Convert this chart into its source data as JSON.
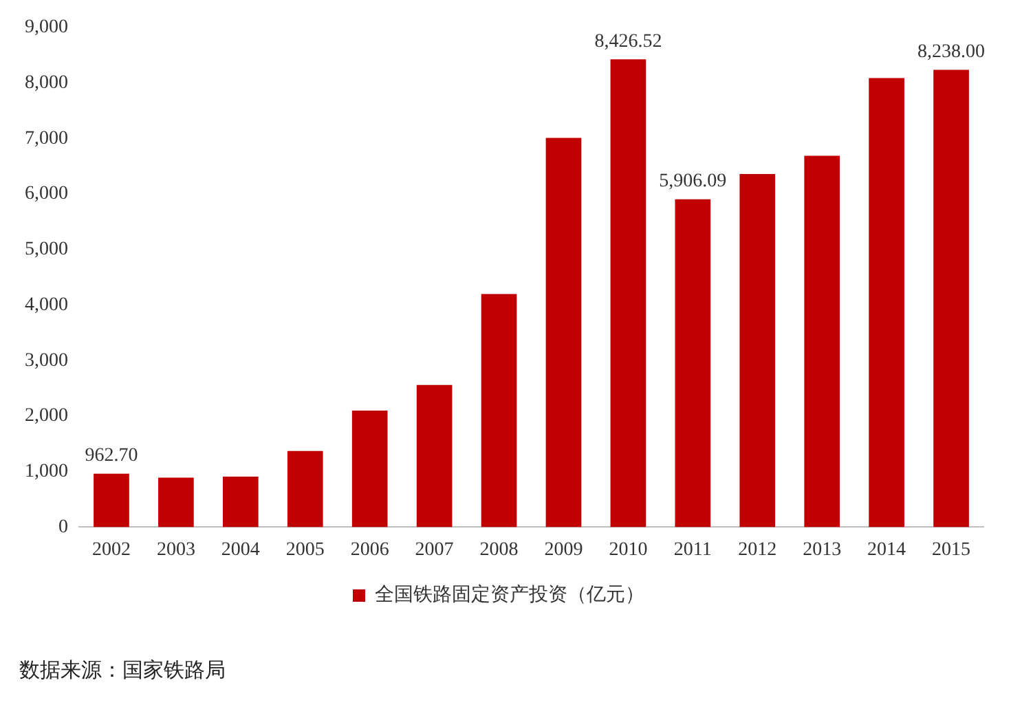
{
  "chart_data": {
    "type": "bar",
    "categories": [
      "2002",
      "2003",
      "2004",
      "2005",
      "2006",
      "2007",
      "2008",
      "2009",
      "2010",
      "2011",
      "2012",
      "2013",
      "2014",
      "2015"
    ],
    "series": [
      {
        "name": "全国铁路固定资产投资（亿元）",
        "color": "#c00000",
        "values": [
          962.7,
          890,
          910,
          1370,
          2100,
          2560,
          4200,
          7010,
          8426.52,
          5906.09,
          6360,
          6690,
          8090,
          8238.0
        ],
        "value_labels": [
          "962.70",
          null,
          null,
          null,
          null,
          null,
          null,
          null,
          "8,426.52",
          "5,906.09",
          null,
          null,
          null,
          "8,238.00"
        ]
      }
    ],
    "ylim": [
      0,
      9000
    ],
    "yticks": [
      {
        "value": 0,
        "label": "0"
      },
      {
        "value": 1000,
        "label": "1,000"
      },
      {
        "value": 2000,
        "label": "2,000"
      },
      {
        "value": 3000,
        "label": "3,000"
      },
      {
        "value": 4000,
        "label": "4,000"
      },
      {
        "value": 5000,
        "label": "5,000"
      },
      {
        "value": 6000,
        "label": "6,000"
      },
      {
        "value": 7000,
        "label": "7,000"
      },
      {
        "value": 8000,
        "label": "8,000"
      },
      {
        "value": 9000,
        "label": "9,000"
      }
    ],
    "grid": false,
    "legend": "bottom",
    "annotations": [
      "数据来源：国家铁路局"
    ]
  }
}
